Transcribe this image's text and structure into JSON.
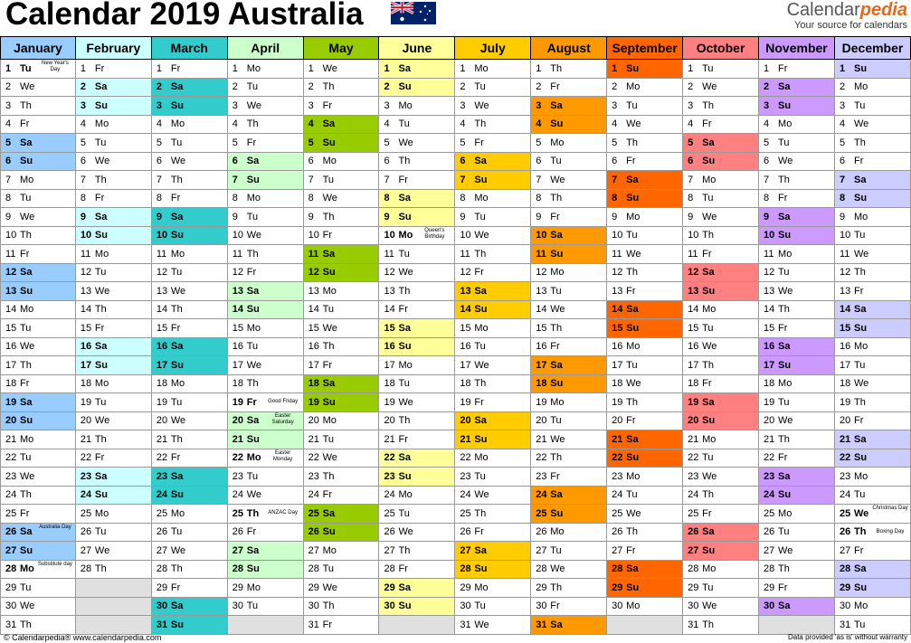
{
  "title": "Calendar 2019 Australia",
  "brand": {
    "name_a": "Calendar",
    "name_b": "pedia",
    "tagline": "Your source for calendars"
  },
  "footer": {
    "left": "© Calendarpedia®   www.calendarpedia.com",
    "right": "Data provided 'as is' without warranty"
  },
  "year": 2019,
  "months": [
    {
      "name": "January",
      "header_color": "#99ccff",
      "weekend_color": "#99ccff"
    },
    {
      "name": "February",
      "header_color": "#ccffff",
      "weekend_color": "#ccffff"
    },
    {
      "name": "March",
      "header_color": "#33cccc",
      "weekend_color": "#33cccc"
    },
    {
      "name": "April",
      "header_color": "#ccffcc",
      "weekend_color": "#ccffcc"
    },
    {
      "name": "May",
      "header_color": "#99cc00",
      "weekend_color": "#99cc00"
    },
    {
      "name": "June",
      "header_color": "#ffff99",
      "weekend_color": "#ffff99"
    },
    {
      "name": "July",
      "header_color": "#ffcc00",
      "weekend_color": "#ffcc00"
    },
    {
      "name": "August",
      "header_color": "#ff9900",
      "weekend_color": "#ff9900"
    },
    {
      "name": "September",
      "header_color": "#ff6600",
      "weekend_color": "#ff6600"
    },
    {
      "name": "October",
      "header_color": "#ff8080",
      "weekend_color": "#ff8080"
    },
    {
      "name": "November",
      "header_color": "#cc99ff",
      "weekend_color": "#cc99ff"
    },
    {
      "name": "December",
      "header_color": "#ccccff",
      "weekend_color": "#ccccff"
    }
  ],
  "holidays": {
    "0-1": "New Year's Day",
    "0-26": "Australia Day",
    "0-28": "Substitute day",
    "3-19": "Good Friday",
    "3-20": "Easter Saturday",
    "3-22": "Easter Monday",
    "3-25": "ANZAC Day",
    "5-10": "Queen's Birthday",
    "11-25": "Christmas Day",
    "11-26": "Boxing Day"
  },
  "holiday_bold": [
    "0-1",
    "0-28",
    "3-19",
    "3-22",
    "3-25",
    "5-10",
    "11-25",
    "11-26"
  ],
  "day_abbr": [
    "Su",
    "Mo",
    "Tu",
    "We",
    "Th",
    "Fr",
    "Sa"
  ]
}
